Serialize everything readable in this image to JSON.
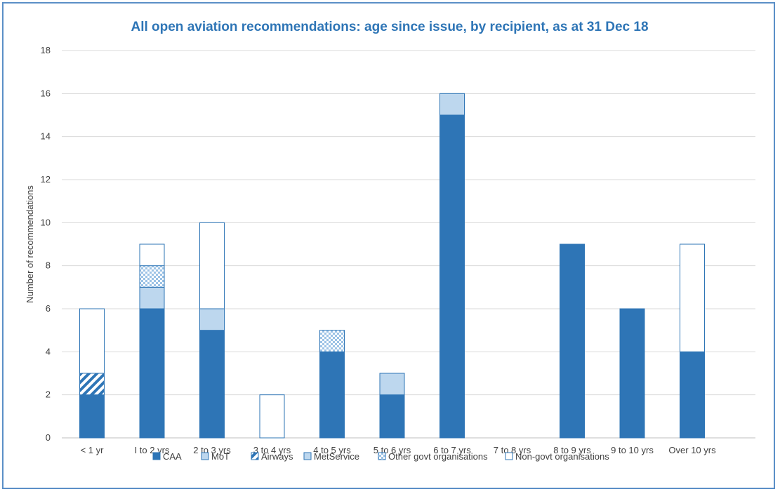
{
  "chart_data": {
    "type": "bar",
    "stacked": true,
    "title": "All open aviation recommendations: age since issue, by recipient, as at 31 Dec 18",
    "xlabel": "",
    "ylabel": "Number of recommendations",
    "ylim": [
      0,
      18
    ],
    "yticks": [
      0,
      2,
      4,
      6,
      8,
      10,
      12,
      14,
      16,
      18
    ],
    "grid": true,
    "legend_position": "bottom",
    "categories": [
      "< 1 yr",
      "I to 2 yrs",
      "2 to 3 yrs",
      "3 to 4 yrs",
      "4 to 5 yrs",
      "5 to 6 yrs",
      "6 to 7 yrs",
      "7 to 8 yrs",
      "8 to 9 yrs",
      "9 to 10 yrs",
      "Over 10 yrs"
    ],
    "series": [
      {
        "name": "CAA",
        "values": [
          2,
          6,
          5,
          0,
          4,
          2,
          15,
          0,
          9,
          6,
          4
        ],
        "color": "#2e75b6",
        "pattern": "solid"
      },
      {
        "name": "MoT",
        "values": [
          0,
          0,
          0,
          0,
          0,
          0,
          0,
          0,
          0,
          0,
          0
        ],
        "color": "#bdd7ee",
        "pattern": "light"
      },
      {
        "name": "Airways",
        "values": [
          1,
          0,
          0,
          0,
          0,
          0,
          0,
          0,
          0,
          0,
          0
        ],
        "color": "#2e75b6",
        "pattern": "diagonal"
      },
      {
        "name": "MetService",
        "values": [
          0,
          1,
          1,
          0,
          0,
          1,
          1,
          0,
          0,
          0,
          0
        ],
        "color": "#bdd7ee",
        "pattern": "light"
      },
      {
        "name": "Other govt organisations",
        "values": [
          0,
          1,
          0,
          0,
          1,
          0,
          0,
          0,
          0,
          0,
          0
        ],
        "color": "#9dc3e6",
        "pattern": "checker"
      },
      {
        "name": "Non-govt organisations",
        "values": [
          3,
          1,
          4,
          2,
          0,
          0,
          0,
          0,
          0,
          0,
          5
        ],
        "color": "#ffffff",
        "pattern": "empty"
      }
    ],
    "border_color": "#2e75b6"
  }
}
